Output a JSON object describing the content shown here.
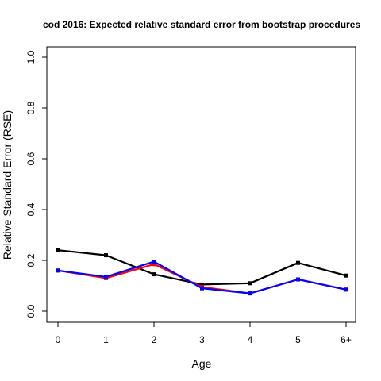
{
  "chart_data": {
    "type": "line",
    "title": "cod 2016: Expected relative standard error from bootstrap procedures",
    "xlabel": "Age",
    "ylabel": "Relative Standard Error (RSE)",
    "categories": [
      "0",
      "1",
      "2",
      "3",
      "4",
      "5",
      "6+"
    ],
    "ylim": [
      0,
      1
    ],
    "yticks": [
      "0.0",
      "0.2",
      "0.4",
      "0.6",
      "0.8",
      "1.0"
    ],
    "grid": false,
    "legend": "none",
    "series": [
      {
        "color": "#000000",
        "marker": "square",
        "values": [
          0.24,
          0.22,
          0.145,
          0.105,
          0.11,
          0.19,
          0.14
        ]
      },
      {
        "color": "#ff0000",
        "marker": "square",
        "values": [
          0.16,
          0.13,
          0.185,
          0.095,
          0.07,
          0.125,
          0.085
        ]
      },
      {
        "color": "#0000ff",
        "marker": "square",
        "values": [
          0.16,
          0.135,
          0.195,
          0.09,
          0.07,
          0.125,
          0.085
        ]
      }
    ]
  }
}
